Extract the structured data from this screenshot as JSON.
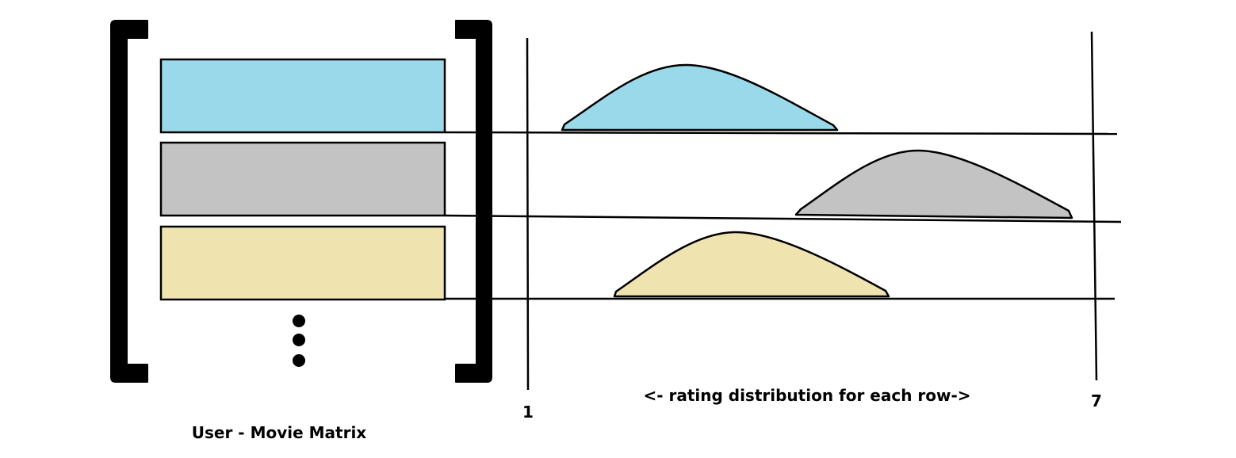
{
  "matrix": {
    "caption": "User - Movie Matrix",
    "rows": [
      {
        "color": "#99d9ea"
      },
      {
        "color": "#c3c3c3"
      },
      {
        "color": "#efe4b0"
      }
    ],
    "continuation": "vertical-ellipsis"
  },
  "distribution": {
    "caption": "<- rating distribution for each row->",
    "axis_min_label": "1",
    "axis_max_label": "7"
  }
}
